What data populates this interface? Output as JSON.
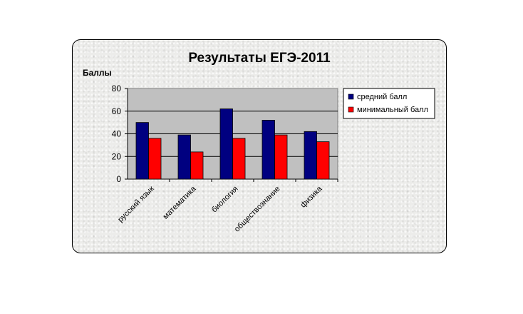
{
  "chart_data": {
    "type": "bar",
    "title": "Результаты ЕГЭ-2011",
    "ylabel": "Баллы",
    "xlabel": "",
    "categories": [
      "русский язык",
      "математика",
      "биология",
      "обществознание",
      "физика"
    ],
    "series": [
      {
        "name": "средний балл",
        "values": [
          50,
          39,
          62,
          52,
          42
        ],
        "color": "#000080"
      },
      {
        "name": "минимальный балл",
        "values": [
          36,
          24,
          36,
          39,
          33
        ],
        "color": "#ff0000"
      }
    ],
    "ylim": [
      0,
      80
    ],
    "yticks": [
      0,
      20,
      40,
      60,
      80
    ],
    "grid": true,
    "plot_background": "#c0c0c0",
    "legend_position": "right"
  }
}
